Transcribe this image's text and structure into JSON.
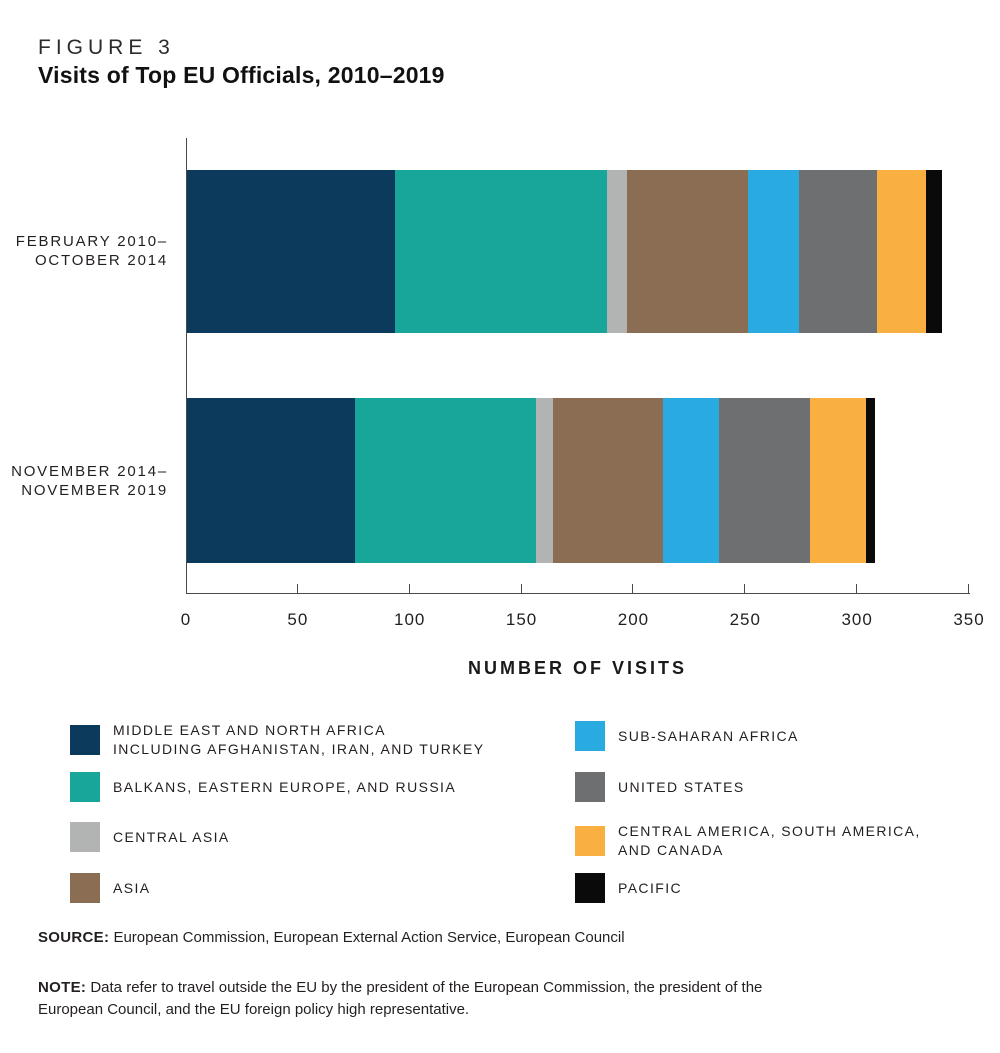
{
  "figure": {
    "label": "FIGURE 3",
    "title": "Visits of Top EU Officials, 2010–2019"
  },
  "chart_data": {
    "type": "bar",
    "orientation": "horizontal",
    "stacked": true,
    "title": "Visits of Top EU Officials, 2010–2019",
    "categories": [
      [
        "FEBRUARY 2010–",
        "OCTOBER 2014"
      ],
      [
        "NOVEMBER 2014–",
        "NOVEMBER 2019"
      ]
    ],
    "series": [
      {
        "name": "MIDDLE EAST AND NORTH AFRICA INCLUDING AFGHANISTAN, IRAN, AND TURKEY",
        "color": "#0b3a5c",
        "values": [
          93,
          75
        ]
      },
      {
        "name": "BALKANS, EASTERN EUROPE, AND RUSSIA",
        "color": "#18a69a",
        "values": [
          95,
          81
        ]
      },
      {
        "name": "CENTRAL ASIA",
        "color": "#b1b4b3",
        "values": [
          9,
          8
        ]
      },
      {
        "name": "ASIA",
        "color": "#8a6d53",
        "values": [
          54,
          49
        ]
      },
      {
        "name": "SUB-SAHARAN AFRICA",
        "color": "#29aae1",
        "values": [
          23,
          25
        ]
      },
      {
        "name": "UNITED STATES",
        "color": "#6d6f71",
        "values": [
          35,
          41
        ]
      },
      {
        "name": "CENTRAL AMERICA, SOUTH AMERICA, AND CANADA",
        "color": "#f9b041",
        "values": [
          22,
          25
        ]
      },
      {
        "name": "PACIFIC",
        "color": "#0a0a0a",
        "values": [
          7,
          4
        ]
      }
    ],
    "totals": [
      338,
      308
    ],
    "xlabel": "NUMBER OF VISITS",
    "ylabel": "",
    "xlim": [
      0,
      350
    ],
    "x_ticks": [
      0,
      50,
      100,
      150,
      200,
      250,
      300,
      350
    ],
    "grid": false,
    "legend_position": "bottom"
  },
  "legend": {
    "left": [
      {
        "color": "#0b3a5c",
        "lines": [
          "MIDDLE EAST AND NORTH AFRICA",
          "INCLUDING AFGHANISTAN, IRAN, AND TURKEY"
        ]
      },
      {
        "color": "#18a69a",
        "lines": [
          "BALKANS, EASTERN EUROPE, AND RUSSIA"
        ]
      },
      {
        "color": "#b1b4b3",
        "lines": [
          "CENTRAL ASIA"
        ]
      },
      {
        "color": "#8a6d53",
        "lines": [
          "ASIA"
        ]
      }
    ],
    "right": [
      {
        "color": "#29aae1",
        "lines": [
          "SUB-SAHARAN AFRICA"
        ]
      },
      {
        "color": "#6d6f71",
        "lines": [
          "UNITED STATES"
        ]
      },
      {
        "color": "#f9b041",
        "lines": [
          "CENTRAL AMERICA, SOUTH AMERICA,",
          "AND CANADA"
        ]
      },
      {
        "color": "#0a0a0a",
        "lines": [
          "PACIFIC"
        ]
      }
    ]
  },
  "source": {
    "label": "SOURCE:",
    "text": "European Commission, European External Action Service, European Council"
  },
  "note": {
    "label": "NOTE:",
    "lines": [
      "Data refer to travel outside the EU by the president of the European Commission, the president of the",
      "European Council, and the EU foreign policy high representative."
    ]
  }
}
